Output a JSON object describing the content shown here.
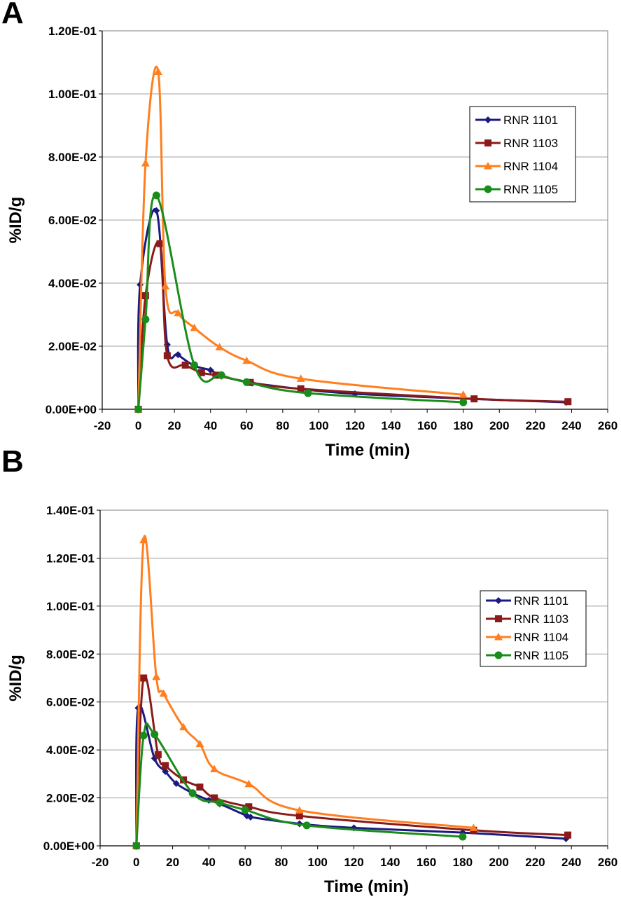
{
  "panels": [
    {
      "letter": "A",
      "chart_data": {
        "type": "line",
        "xlabel": "Time (min)",
        "ylabel": "%ID/g",
        "xlim": [
          -20,
          260
        ],
        "ylim": [
          0,
          0.12
        ],
        "x_ticks": [
          -20,
          0,
          20,
          40,
          60,
          80,
          100,
          120,
          140,
          160,
          180,
          200,
          220,
          240,
          260
        ],
        "y_ticks": [
          0,
          0.02,
          0.04,
          0.06,
          0.08,
          0.1,
          0.12
        ],
        "y_tick_labels": [
          "0.00E+00",
          "2.00E-02",
          "4.00E-02",
          "6.00E-02",
          "8.00E-02",
          "1.00E-01",
          "1.20E-01"
        ],
        "grid": "horizontal",
        "legend_position": "right",
        "series": [
          {
            "name": "RNR 1101",
            "color": "#1a1a80",
            "marker": "diamond",
            "x": [
              0,
              1,
              10,
              16,
              22,
              31,
              40,
              46,
              61,
              63,
              90,
              120,
              180,
              237
            ],
            "y": [
              0,
              0.0395,
              0.063,
              0.0205,
              0.0173,
              0.0138,
              0.0124,
              0.0105,
              0.0086,
              0.0083,
              0.0064,
              0.0049,
              0.0034,
              0.0022
            ]
          },
          {
            "name": "RNR 1103",
            "color": "#8b1a1a",
            "marker": "square",
            "x": [
              0,
              4,
              12,
              16,
              26,
              35,
              43,
              62,
              90,
              186,
              238
            ],
            "y": [
              0,
              0.036,
              0.0525,
              0.017,
              0.014,
              0.0116,
              0.0108,
              0.0085,
              0.0065,
              0.0033,
              0.0024
            ]
          },
          {
            "name": "RNR 1104",
            "color": "#ff7f1f",
            "marker": "triangle",
            "x": [
              0,
              4,
              11,
              15,
              22,
              31,
              45,
              60,
              90,
              180
            ],
            "y": [
              0,
              0.078,
              0.107,
              0.039,
              0.0305,
              0.0258,
              0.0197,
              0.0154,
              0.0097,
              0.0046
            ]
          },
          {
            "name": "RNR 1105",
            "color": "#1a8c1a",
            "marker": "circle",
            "x": [
              0,
              4,
              10,
              31,
              46,
              60,
              94,
              180
            ],
            "y": [
              0,
              0.0285,
              0.0678,
              0.014,
              0.0108,
              0.0086,
              0.0051,
              0.0022
            ]
          }
        ]
      }
    },
    {
      "letter": "B",
      "chart_data": {
        "type": "line",
        "xlabel": "Time (min)",
        "ylabel": "%ID/g",
        "xlim": [
          -20,
          260
        ],
        "ylim": [
          0,
          0.14
        ],
        "x_ticks": [
          -20,
          0,
          20,
          40,
          60,
          80,
          100,
          120,
          140,
          160,
          180,
          200,
          220,
          240,
          260
        ],
        "y_ticks": [
          0,
          0.02,
          0.04,
          0.06,
          0.08,
          0.1,
          0.12,
          0.14
        ],
        "y_tick_labels": [
          "0.00E+00",
          "2.00E-02",
          "4.00E-02",
          "6.00E-02",
          "8.00E-02",
          "1.00E-01",
          "1.20E-01",
          "1.40E-01"
        ],
        "grid": "horizontal",
        "legend_position": "right",
        "series": [
          {
            "name": "RNR 1101",
            "color": "#1a1a80",
            "marker": "diamond",
            "x": [
              0,
              1,
              10,
              16,
              22,
              31,
              40,
              46,
              61,
              63,
              90,
              120,
              180,
              237
            ],
            "y": [
              0,
              0.0575,
              0.0365,
              0.031,
              0.026,
              0.022,
              0.019,
              0.0175,
              0.0125,
              0.012,
              0.0092,
              0.0075,
              0.0055,
              0.003
            ]
          },
          {
            "name": "RNR 1103",
            "color": "#8b1a1a",
            "marker": "square",
            "x": [
              0,
              4,
              12,
              16,
              26,
              35,
              43,
              62,
              90,
              186,
              238
            ],
            "y": [
              0,
              0.07,
              0.038,
              0.0335,
              0.0275,
              0.0245,
              0.02,
              0.0163,
              0.0125,
              0.0065,
              0.0045
            ]
          },
          {
            "name": "RNR 1104",
            "color": "#ff7f1f",
            "marker": "triangle",
            "x": [
              0,
              4,
              11,
              15,
              26,
              35,
              43,
              62,
              90,
              186
            ],
            "y": [
              0,
              0.1275,
              0.0705,
              0.0635,
              0.0495,
              0.0425,
              0.032,
              0.0258,
              0.0148,
              0.0075
            ]
          },
          {
            "name": "RNR 1105",
            "color": "#1a8c1a",
            "marker": "circle",
            "x": [
              0,
              4,
              10,
              31,
              46,
              60,
              94,
              180
            ],
            "y": [
              0,
              0.046,
              0.0465,
              0.022,
              0.018,
              0.015,
              0.0085,
              0.0038
            ]
          }
        ]
      }
    }
  ]
}
